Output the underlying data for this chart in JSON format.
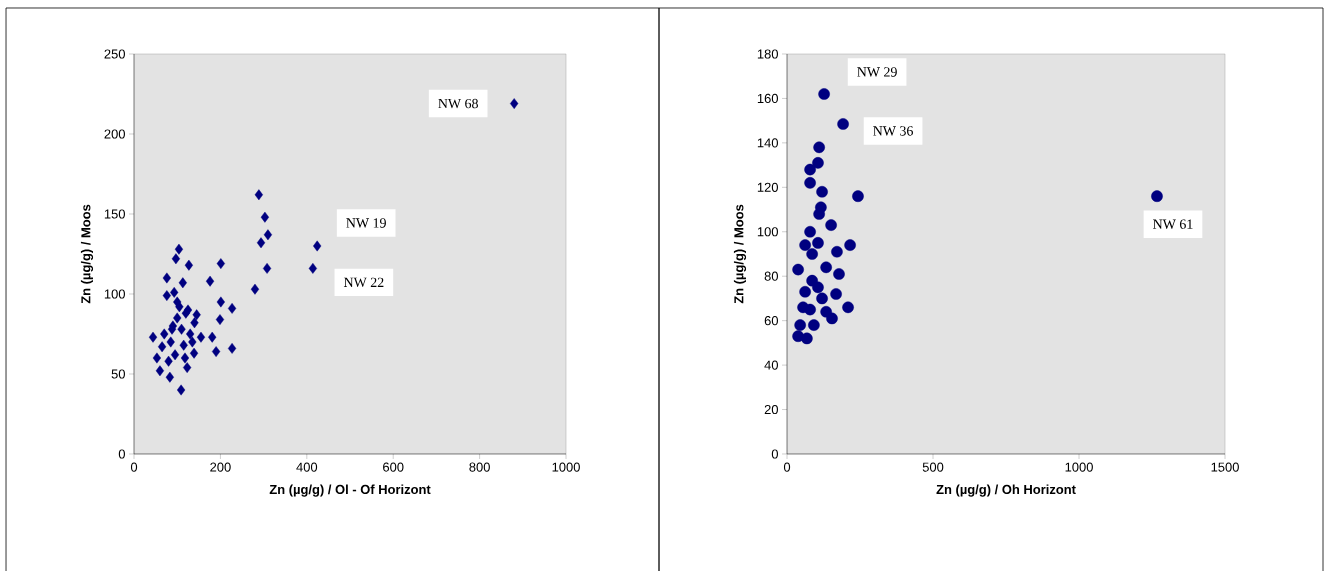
{
  "chart_data": [
    {
      "type": "scatter",
      "xlabel": "Zn (µg/g) / Ol - Of Horizont",
      "ylabel": "Zn (µg/g) / Moos",
      "xlim": [
        0,
        1000
      ],
      "ylim": [
        0,
        250
      ],
      "xticks": [
        0,
        200,
        400,
        600,
        800,
        1000
      ],
      "yticks": [
        0,
        50,
        100,
        150,
        200,
        250
      ],
      "marker": "diamond",
      "grid": false,
      "series": [
        {
          "color": "#000080",
          "x": [
            880,
            289,
            303,
            310,
            294,
            424,
            308,
            414,
            280,
            104,
            97,
            127,
            201,
            76,
            113,
            176,
            201,
            227,
            199,
            190,
            227,
            109,
            83,
            60,
            123,
            53,
            44,
            76,
            93,
            155,
            181,
            139,
            100,
            120,
            90,
            130,
            105,
            85,
            115,
            140,
            95,
            70,
            125,
            110,
            80,
            100,
            145,
            135,
            65,
            118,
            88
          ],
          "values": [
            219,
            162,
            148,
            137,
            132,
            130,
            116,
            116,
            103,
            128,
            122,
            118,
            119,
            110,
            107,
            108,
            95,
            91,
            84,
            64,
            66,
            40,
            48,
            52,
            54,
            60,
            73,
            99,
            101,
            73,
            73,
            63,
            85,
            88,
            80,
            75,
            92,
            70,
            68,
            82,
            62,
            75,
            90,
            78,
            58,
            95,
            87,
            70,
            67,
            60,
            78
          ]
        }
      ],
      "annotations": [
        {
          "text": "NW 68",
          "x": 880,
          "y": 219
        },
        {
          "text": "NW 19",
          "x": 424,
          "y": 130
        },
        {
          "text": "NW 22",
          "x": 414,
          "y": 116
        }
      ]
    },
    {
      "type": "scatter",
      "xlabel": "Zn (µg/g) / Oh Horizont",
      "ylabel": "Zn (µg/g) / Moos",
      "xlim": [
        0,
        1500
      ],
      "ylim": [
        0,
        180
      ],
      "xticks": [
        0,
        500,
        1000,
        1500
      ],
      "yticks": [
        0,
        20,
        40,
        60,
        80,
        100,
        120,
        140,
        160,
        180
      ],
      "marker": "circle",
      "grid": false,
      "series": [
        {
          "color": "#000080",
          "x": [
            127,
            192,
            1267,
            110,
            106,
            79,
            79,
            120,
            243,
            116,
            110,
            151,
            79,
            62,
            106,
            171,
            216,
            86,
            38,
            134,
            178,
            86,
            62,
            106,
            120,
            168,
            55,
            209,
            79,
            134,
            154,
            45,
            92,
            38,
            68
          ],
          "values": [
            162,
            148.5,
            116,
            138,
            131,
            128,
            122,
            118,
            116,
            111,
            108,
            103,
            100,
            94,
            95,
            91,
            94,
            90,
            83,
            84,
            81,
            78,
            73,
            75,
            70,
            72,
            66,
            66,
            65,
            64,
            61,
            58,
            58,
            53,
            52
          ]
        }
      ],
      "annotations": [
        {
          "text": "NW 29",
          "x": 127,
          "y": 162
        },
        {
          "text": "NW 36",
          "x": 192,
          "y": 148.5
        },
        {
          "text": "NW 61",
          "x": 1267,
          "y": 116
        }
      ]
    }
  ]
}
